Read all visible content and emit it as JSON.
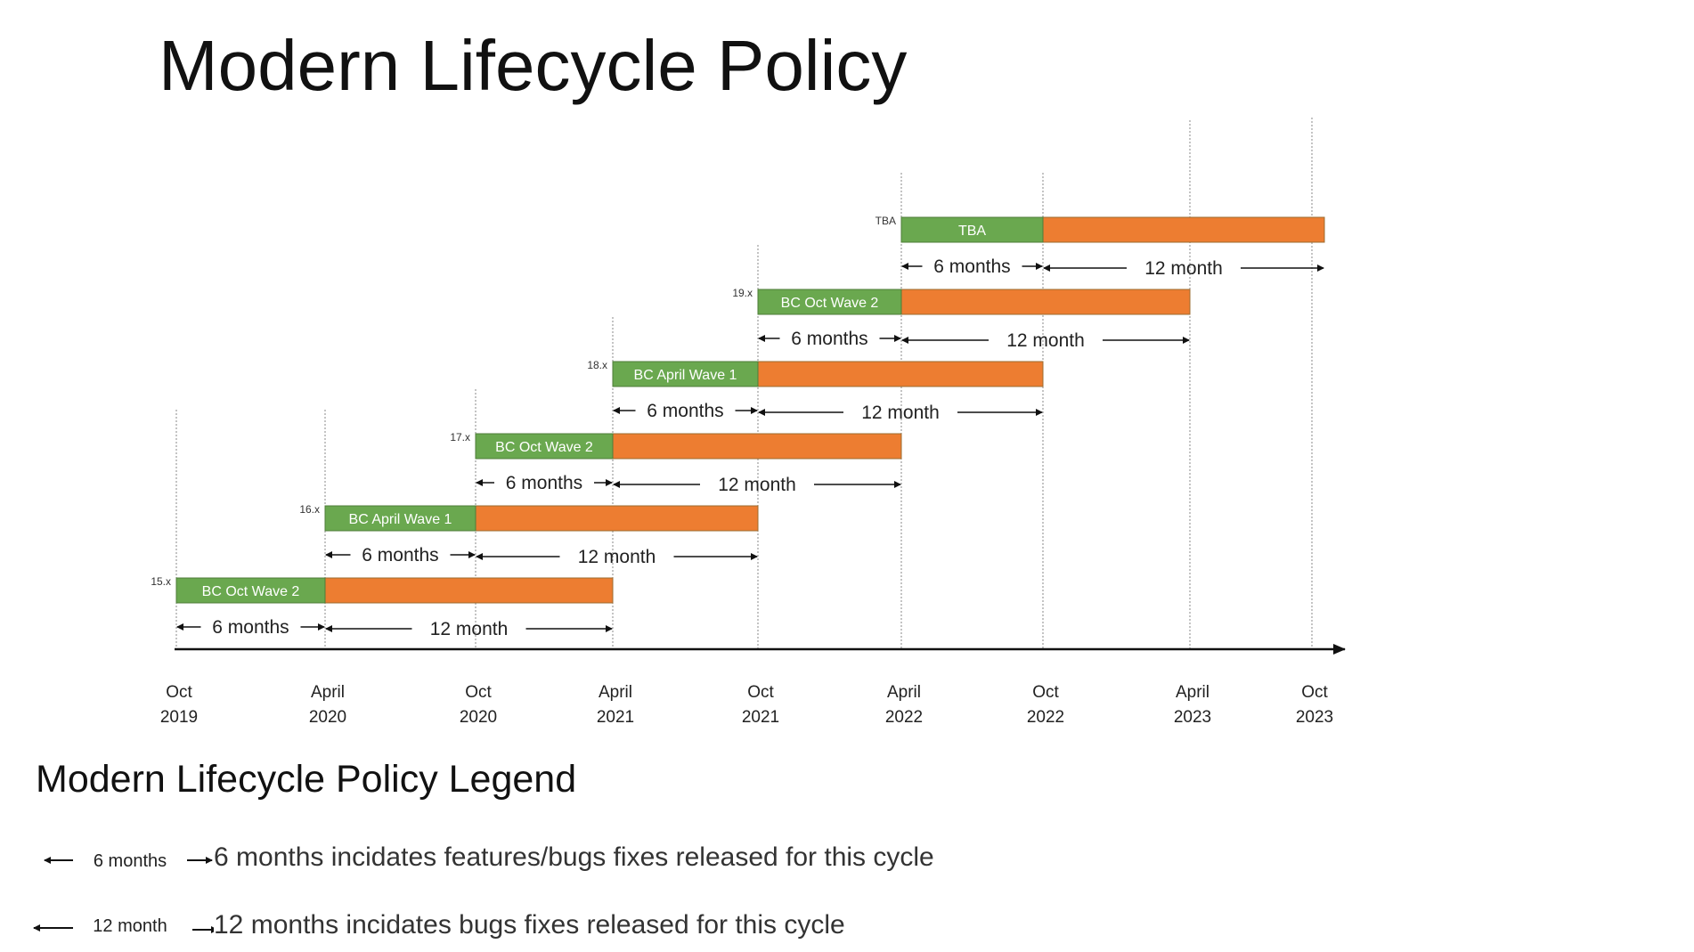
{
  "title": "Modern Lifecycle Policy",
  "colors": {
    "green": "#6aa84f",
    "orange": "#ed7d31",
    "axis": "#111111",
    "gridline": "#888888"
  },
  "timeline": {
    "ticks": [
      {
        "month": "Oct",
        "year": "2019"
      },
      {
        "month": "April",
        "year": "2020"
      },
      {
        "month": "Oct",
        "year": "2020"
      },
      {
        "month": "April",
        "year": "2021"
      },
      {
        "month": "Oct",
        "year": "2021"
      },
      {
        "month": "April",
        "year": "2022"
      },
      {
        "month": "Oct",
        "year": "2022"
      },
      {
        "month": "April",
        "year": "2023"
      },
      {
        "month": "Oct",
        "year": "2023"
      }
    ]
  },
  "releases": [
    {
      "version": "15.x",
      "label": "BC Oct Wave 2",
      "start_tick": 0,
      "feature_label": "6 months",
      "bugfix_label": "12 month"
    },
    {
      "version": "16.x",
      "label": "BC April Wave 1",
      "start_tick": 1,
      "feature_label": "6 months",
      "bugfix_label": "12 month"
    },
    {
      "version": "17.x",
      "label": "BC Oct Wave 2",
      "start_tick": 2,
      "feature_label": "6 months",
      "bugfix_label": "12 month"
    },
    {
      "version": "18.x",
      "label": "BC April Wave 1",
      "start_tick": 3,
      "feature_label": "6 months",
      "bugfix_label": "12 month"
    },
    {
      "version": "19.x",
      "label": "BC Oct Wave 2",
      "start_tick": 4,
      "feature_label": "6 months",
      "bugfix_label": "12 month"
    },
    {
      "version": "TBA",
      "label": "TBA",
      "start_tick": 5,
      "feature_label": "6 months",
      "bugfix_label": "12 month"
    }
  ],
  "legend": {
    "title": "Modern Lifecycle Policy Legend",
    "items": [
      {
        "marker": "6 months",
        "description": "6 months incidates features/bugs fixes released for this cycle"
      },
      {
        "marker": "12 month",
        "description": "12 months incidates bugs fixes released for this cycle"
      }
    ]
  }
}
